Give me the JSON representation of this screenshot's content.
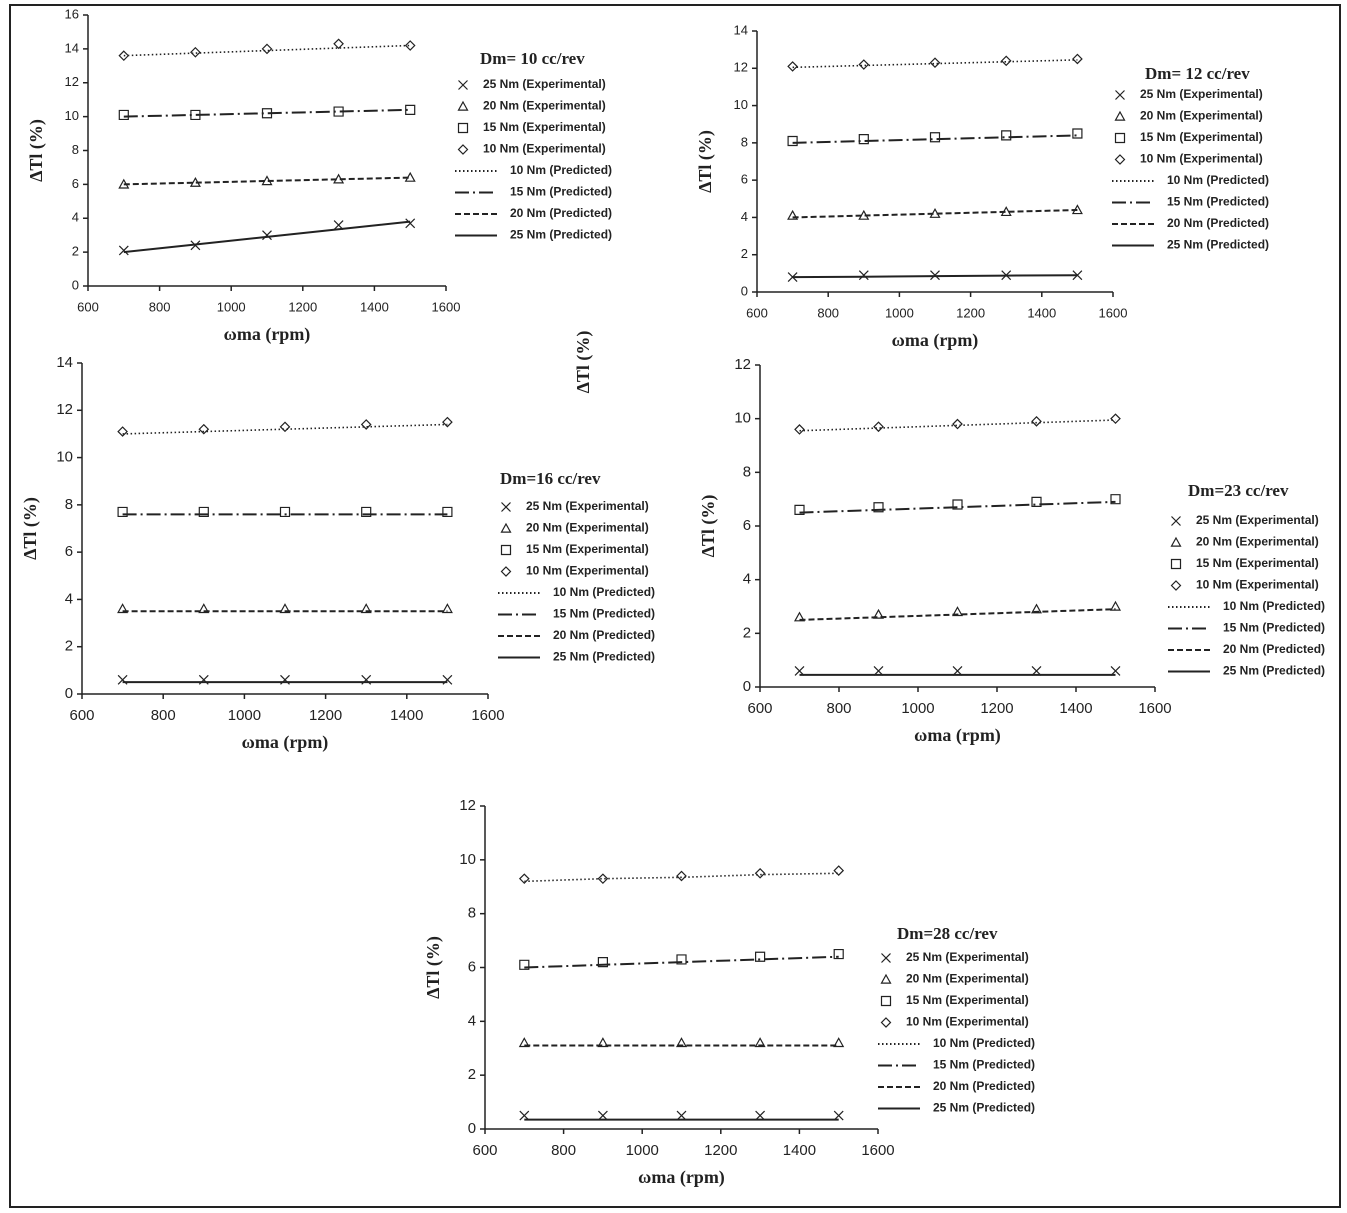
{
  "annotation": "ΔTl (%)",
  "chart_data": [
    {
      "type": "line",
      "title": "Dm= 10 cc/rev",
      "xlabel": "ωma (rpm)",
      "ylabel": "ΔTl (%)",
      "x": [
        700,
        900,
        1100,
        1300,
        1500
      ],
      "xlim": [
        600,
        1600
      ],
      "xticks": [
        600,
        800,
        1000,
        1200,
        1400,
        1600
      ],
      "ylim": [
        0,
        16
      ],
      "yticks": [
        0,
        2,
        4,
        6,
        8,
        10,
        12,
        14,
        16
      ],
      "series": [
        {
          "name": "25 Nm (Experimental)",
          "color": "#222",
          "marker": "x",
          "values": [
            2.1,
            2.4,
            3.0,
            3.6,
            3.7
          ]
        },
        {
          "name": "20 Nm (Experimental)",
          "color": "#222",
          "marker": "triangle",
          "values": [
            6.0,
            6.1,
            6.2,
            6.3,
            6.4
          ]
        },
        {
          "name": "15 Nm (Experimental)",
          "color": "#222",
          "marker": "square",
          "values": [
            10.1,
            10.1,
            10.2,
            10.3,
            10.4
          ]
        },
        {
          "name": "10 Nm (Experimental)",
          "color": "#222",
          "marker": "diamond",
          "values": [
            13.6,
            13.8,
            14.0,
            14.3,
            14.2
          ]
        },
        {
          "name": "10 Nm (Predicted)",
          "color": "#222",
          "dash": "dotted",
          "values": [
            13.6,
            13.75,
            13.9,
            14.05,
            14.2
          ]
        },
        {
          "name": "15 Nm (Predicted)",
          "color": "#222",
          "dash": "dashdot",
          "values": [
            10.0,
            10.1,
            10.2,
            10.3,
            10.4
          ]
        },
        {
          "name": "20 Nm (Predicted)",
          "color": "#222",
          "dash": "dashed",
          "values": [
            6.0,
            6.1,
            6.2,
            6.3,
            6.4
          ]
        },
        {
          "name": "25 Nm (Predicted)",
          "color": "#222",
          "dash": "solid",
          "values": [
            2.0,
            2.45,
            2.9,
            3.35,
            3.8
          ]
        }
      ]
    },
    {
      "type": "line",
      "title": "Dm= 12 cc/rev",
      "xlabel": "ωma (rpm)",
      "ylabel": "ΔTl (%)",
      "x": [
        700,
        900,
        1100,
        1300,
        1500
      ],
      "xlim": [
        600,
        1600
      ],
      "xticks": [
        600,
        800,
        1000,
        1200,
        1400,
        1600
      ],
      "ylim": [
        0,
        14
      ],
      "yticks": [
        0,
        2,
        4,
        6,
        8,
        10,
        12,
        14
      ],
      "series": [
        {
          "name": "25 Nm (Experimental)",
          "color": "#222",
          "marker": "x",
          "values": [
            0.8,
            0.9,
            0.9,
            0.9,
            0.9
          ]
        },
        {
          "name": "20 Nm (Experimental)",
          "color": "#222",
          "marker": "triangle",
          "values": [
            4.1,
            4.1,
            4.2,
            4.3,
            4.4
          ]
        },
        {
          "name": "15 Nm (Experimental)",
          "color": "#222",
          "marker": "square",
          "values": [
            8.1,
            8.2,
            8.3,
            8.4,
            8.5
          ]
        },
        {
          "name": "10 Nm (Experimental)",
          "color": "#222",
          "marker": "diamond",
          "values": [
            12.1,
            12.2,
            12.3,
            12.4,
            12.5
          ]
        },
        {
          "name": "10 Nm (Predicted)",
          "color": "#222",
          "dash": "dotted",
          "values": [
            12.05,
            12.15,
            12.25,
            12.35,
            12.45
          ]
        },
        {
          "name": "15 Nm (Predicted)",
          "color": "#222",
          "dash": "dashdot",
          "values": [
            8.0,
            8.1,
            8.2,
            8.3,
            8.4
          ]
        },
        {
          "name": "20 Nm (Predicted)",
          "color": "#222",
          "dash": "dashed",
          "values": [
            4.0,
            4.1,
            4.2,
            4.3,
            4.4
          ]
        },
        {
          "name": "25 Nm (Predicted)",
          "color": "#222",
          "dash": "solid",
          "values": [
            0.8,
            0.82,
            0.85,
            0.88,
            0.9
          ]
        }
      ]
    },
    {
      "type": "line",
      "title": "Dm=16 cc/rev",
      "xlabel": "ωma (rpm)",
      "ylabel": "ΔTl (%)",
      "x": [
        700,
        900,
        1100,
        1300,
        1500
      ],
      "xlim": [
        600,
        1600
      ],
      "xticks": [
        600,
        800,
        1000,
        1200,
        1400,
        1600
      ],
      "ylim": [
        0,
        14
      ],
      "yticks": [
        0,
        2,
        4,
        6,
        8,
        10,
        12,
        14
      ],
      "series": [
        {
          "name": "25 Nm (Experimental)",
          "color": "#222",
          "marker": "x",
          "values": [
            0.6,
            0.6,
            0.6,
            0.6,
            0.6
          ]
        },
        {
          "name": "20 Nm (Experimental)",
          "color": "#222",
          "marker": "triangle",
          "values": [
            3.6,
            3.6,
            3.6,
            3.6,
            3.6
          ]
        },
        {
          "name": "15 Nm (Experimental)",
          "color": "#222",
          "marker": "square",
          "values": [
            7.7,
            7.7,
            7.7,
            7.7,
            7.7
          ]
        },
        {
          "name": "10 Nm (Experimental)",
          "color": "#222",
          "marker": "diamond",
          "values": [
            11.1,
            11.2,
            11.3,
            11.4,
            11.5
          ]
        },
        {
          "name": "10 Nm (Predicted)",
          "color": "#222",
          "dash": "dotted",
          "values": [
            11.0,
            11.1,
            11.2,
            11.3,
            11.4
          ]
        },
        {
          "name": "15 Nm (Predicted)",
          "color": "#222",
          "dash": "dashdot",
          "values": [
            7.6,
            7.6,
            7.6,
            7.6,
            7.6
          ]
        },
        {
          "name": "20 Nm (Predicted)",
          "color": "#222",
          "dash": "dashed",
          "values": [
            3.5,
            3.5,
            3.5,
            3.5,
            3.5
          ]
        },
        {
          "name": "25 Nm (Predicted)",
          "color": "#222",
          "dash": "solid",
          "values": [
            0.5,
            0.5,
            0.5,
            0.5,
            0.5
          ]
        }
      ]
    },
    {
      "type": "line",
      "title": "Dm=23 cc/rev",
      "xlabel": "ωma (rpm)",
      "ylabel": "ΔTl (%)",
      "x": [
        700,
        900,
        1100,
        1300,
        1500
      ],
      "xlim": [
        600,
        1600
      ],
      "xticks": [
        600,
        800,
        1000,
        1200,
        1400,
        1600
      ],
      "ylim": [
        0,
        12
      ],
      "yticks": [
        0,
        2,
        4,
        6,
        8,
        10,
        12
      ],
      "series": [
        {
          "name": "25 Nm (Experimental)",
          "color": "#222",
          "marker": "x",
          "values": [
            0.6,
            0.6,
            0.6,
            0.6,
            0.6
          ]
        },
        {
          "name": "20 Nm (Experimental)",
          "color": "#222",
          "marker": "triangle",
          "values": [
            2.6,
            2.7,
            2.8,
            2.9,
            3.0
          ]
        },
        {
          "name": "15 Nm (Experimental)",
          "color": "#222",
          "marker": "square",
          "values": [
            6.6,
            6.7,
            6.8,
            6.9,
            7.0
          ]
        },
        {
          "name": "10 Nm (Experimental)",
          "color": "#222",
          "marker": "diamond",
          "values": [
            9.6,
            9.7,
            9.8,
            9.9,
            10.0
          ]
        },
        {
          "name": "10 Nm (Predicted)",
          "color": "#222",
          "dash": "dotted",
          "values": [
            9.55,
            9.65,
            9.75,
            9.85,
            9.95
          ]
        },
        {
          "name": "15 Nm (Predicted)",
          "color": "#222",
          "dash": "dashdot",
          "values": [
            6.5,
            6.6,
            6.7,
            6.8,
            6.9
          ]
        },
        {
          "name": "20 Nm (Predicted)",
          "color": "#222",
          "dash": "dashed",
          "values": [
            2.5,
            2.6,
            2.7,
            2.8,
            2.9
          ]
        },
        {
          "name": "25 Nm (Predicted)",
          "color": "#222",
          "dash": "solid",
          "values": [
            0.45,
            0.45,
            0.45,
            0.45,
            0.45
          ]
        }
      ]
    },
    {
      "type": "line",
      "title": "Dm=28 cc/rev",
      "xlabel": "ωma (rpm)",
      "ylabel": "ΔTl (%)",
      "x": [
        700,
        900,
        1100,
        1300,
        1500
      ],
      "xlim": [
        600,
        1600
      ],
      "xticks": [
        600,
        800,
        1000,
        1200,
        1400,
        1600
      ],
      "ylim": [
        0,
        12
      ],
      "yticks": [
        0,
        2,
        4,
        6,
        8,
        10,
        12
      ],
      "series": [
        {
          "name": "25 Nm (Experimental)",
          "color": "#222",
          "marker": "x",
          "values": [
            0.5,
            0.5,
            0.5,
            0.5,
            0.5
          ]
        },
        {
          "name": "20 Nm (Experimental)",
          "color": "#222",
          "marker": "triangle",
          "values": [
            3.2,
            3.2,
            3.2,
            3.2,
            3.2
          ]
        },
        {
          "name": "15 Nm (Experimental)",
          "color": "#222",
          "marker": "square",
          "values": [
            6.1,
            6.2,
            6.3,
            6.4,
            6.5
          ]
        },
        {
          "name": "10 Nm (Experimental)",
          "color": "#222",
          "marker": "diamond",
          "values": [
            9.3,
            9.3,
            9.4,
            9.5,
            9.6
          ]
        },
        {
          "name": "10 Nm (Predicted)",
          "color": "#222",
          "dash": "dotted",
          "values": [
            9.2,
            9.3,
            9.35,
            9.45,
            9.5
          ]
        },
        {
          "name": "15 Nm (Predicted)",
          "color": "#222",
          "dash": "dashdot",
          "values": [
            6.0,
            6.1,
            6.2,
            6.3,
            6.4
          ]
        },
        {
          "name": "20 Nm (Predicted)",
          "color": "#222",
          "dash": "dashed",
          "values": [
            3.1,
            3.1,
            3.1,
            3.1,
            3.1
          ]
        },
        {
          "name": "25 Nm (Predicted)",
          "color": "#222",
          "dash": "solid",
          "values": [
            0.35,
            0.35,
            0.35,
            0.35,
            0.35
          ]
        }
      ]
    }
  ]
}
